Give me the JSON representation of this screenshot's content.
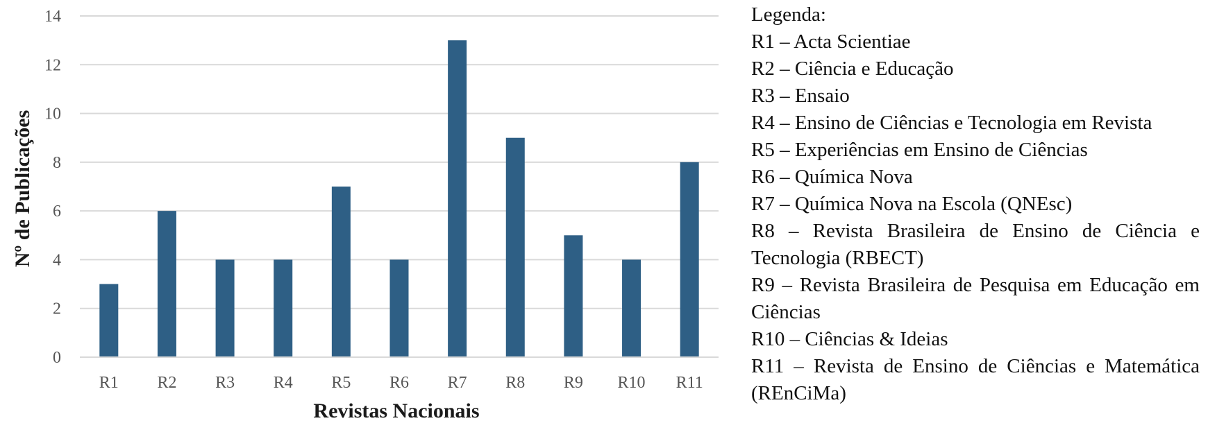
{
  "chart_data": {
    "type": "bar",
    "categories": [
      "R1",
      "R2",
      "R3",
      "R4",
      "R5",
      "R6",
      "R7",
      "R8",
      "R9",
      "R10",
      "R11"
    ],
    "values": [
      3,
      6,
      4,
      4,
      7,
      4,
      13,
      9,
      5,
      4,
      8
    ],
    "xlabel": "Revistas Nacionais",
    "ylabel": "Nº de Publicações",
    "ylim": [
      0,
      14
    ],
    "yticks": [
      0,
      2,
      4,
      6,
      8,
      10,
      12,
      14
    ],
    "grid": true,
    "bar_color": "#2e5f85",
    "grid_color": "#d9d9d9"
  },
  "legend": {
    "title": "Legenda:",
    "entries": [
      "R1 – Acta Scientiae",
      "R2 – Ciência e Educação",
      "R3 – Ensaio",
      "R4 – Ensino de Ciências e Tecnologia em Revista",
      "R5 – Experiências em Ensino de Ciências",
      "R6 – Química Nova",
      "R7 – Química Nova na Escola (QNEsc)",
      "R8 – Revista Brasileira de Ensino de Ciência e Tecnologia (RBECT)",
      "R9 – Revista Brasileira de Pesquisa em Educação em Ciências",
      "R10 – Ciências & Ideias",
      "R11 – Revista de Ensino de Ciências e Matemática (REnCiMa)"
    ]
  }
}
